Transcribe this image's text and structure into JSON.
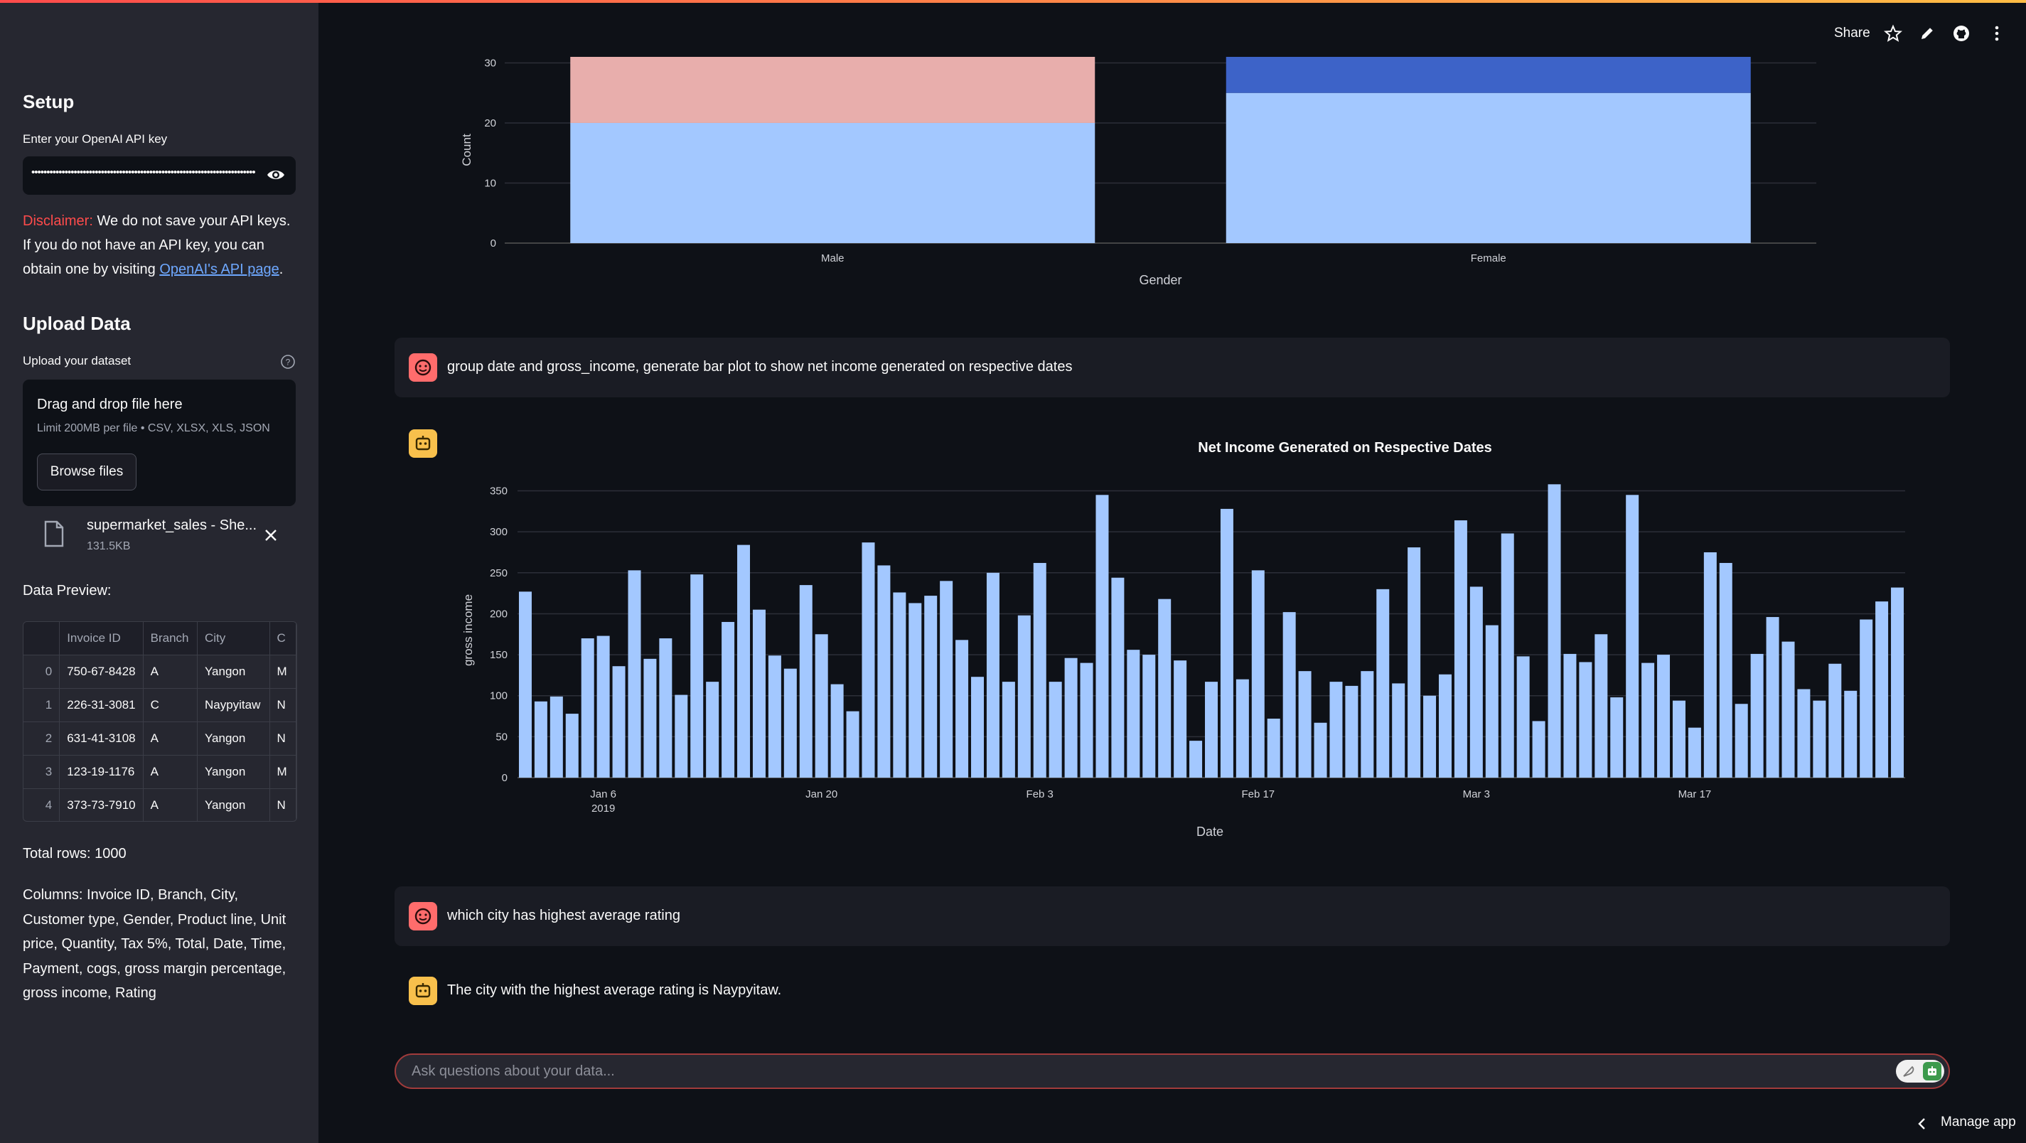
{
  "sidebar": {
    "setup_title": "Setup",
    "api_label": "Enter your OpenAI API key",
    "api_value": "••••••••••••••••••••••••••••••••••••••••••••••••••••••••••••••••••••••••••",
    "disclaimer_prefix": "Disclaimer:",
    "disclaimer_text": " We do not save your API keys. If you do not have an API key, you can obtain one by visiting ",
    "disclaimer_link": "OpenAI's API page",
    "disclaimer_end": ".",
    "upload_title": "Upload Data",
    "upload_label": "Upload your dataset",
    "dropzone_title": "Drag and drop file here",
    "dropzone_limit": "Limit 200MB per file • CSV, XLSX, XLS, JSON",
    "browse_label": "Browse files",
    "file_name": "supermarket_sales - She...",
    "file_size": "131.5KB",
    "preview_label": "Data Preview:",
    "table": {
      "headers": [
        "",
        "Invoice ID",
        "Branch",
        "City",
        "C"
      ],
      "rows": [
        [
          "0",
          "750-67-8428",
          "A",
          "Yangon",
          "M"
        ],
        [
          "1",
          "226-31-3081",
          "C",
          "Naypyitaw",
          "N"
        ],
        [
          "2",
          "631-41-3108",
          "A",
          "Yangon",
          "N"
        ],
        [
          "3",
          "123-19-1176",
          "A",
          "Yangon",
          "M"
        ],
        [
          "4",
          "373-73-7910",
          "A",
          "Yangon",
          "N"
        ]
      ]
    },
    "total_rows": "Total rows: 1000",
    "columns_text": "Columns: Invoice ID, Branch, City, Customer type, Gender, Product line, Unit price, Quantity, Tax 5%, Total, Date, Time, Payment, cogs, gross margin percentage, gross income, Rating"
  },
  "toolbar": {
    "share_label": "Share",
    "icons": [
      "star-icon",
      "pencil-icon",
      "github-icon",
      "more-vertical-icon"
    ]
  },
  "chat": {
    "msg1": "group date and gross_income, generate bar plot to show net income generated on respective dates",
    "msg2": "which city has highest average rating",
    "msg3": "The city with the highest average rating is Naypyitaw.",
    "input_placeholder": "Ask questions about your data...",
    "manage_app": "Manage app"
  },
  "chart_data": [
    {
      "type": "bar",
      "stacked": true,
      "xlabel": "Gender",
      "ylabel": "Count",
      "categories": [
        "Male",
        "Female"
      ],
      "ylim": [
        0,
        31
      ],
      "yticks": [
        0,
        10,
        20,
        30
      ],
      "series": [
        {
          "values": [
            20,
            25
          ],
          "colors": [
            "#a3c8ff",
            "#a3c8ff"
          ]
        },
        {
          "values": [
            11,
            6
          ],
          "colors": [
            "#e8aeac",
            "#3d63c8"
          ]
        }
      ],
      "colors": {
        "base": "#a3c8ff",
        "male_top": "#e8aeac",
        "female_top": "#3d63c8"
      }
    },
    {
      "type": "bar",
      "title": "Net Income Generated on Respective Dates",
      "xlabel": "Date",
      "ylabel": "gross income",
      "ylim": [
        0,
        360
      ],
      "yticks": [
        0,
        50,
        100,
        150,
        200,
        250,
        300,
        350
      ],
      "xticks": [
        {
          "label": "Jan 6",
          "sublabel": "2019",
          "date": "2019-01-06"
        },
        {
          "label": "Jan 20",
          "sublabel": "",
          "date": "2019-01-20"
        },
        {
          "label": "Feb 3",
          "sublabel": "",
          "date": "2019-02-03"
        },
        {
          "label": "Feb 17",
          "sublabel": "",
          "date": "2019-02-17"
        },
        {
          "label": "Mar 3",
          "sublabel": "",
          "date": "2019-03-03"
        },
        {
          "label": "Mar 17",
          "sublabel": "",
          "date": "2019-03-17"
        }
      ],
      "dates": [
        "2019-01-01",
        "2019-01-02",
        "2019-01-03",
        "2019-01-04",
        "2019-01-05",
        "2019-01-06",
        "2019-01-07",
        "2019-01-08",
        "2019-01-09",
        "2019-01-10",
        "2019-01-11",
        "2019-01-12",
        "2019-01-13",
        "2019-01-14",
        "2019-01-15",
        "2019-01-16",
        "2019-01-17",
        "2019-01-18",
        "2019-01-19",
        "2019-01-20",
        "2019-01-21",
        "2019-01-22",
        "2019-01-23",
        "2019-01-24",
        "2019-01-25",
        "2019-01-26",
        "2019-01-27",
        "2019-01-28",
        "2019-01-29",
        "2019-01-30",
        "2019-01-31",
        "2019-02-01",
        "2019-02-02",
        "2019-02-03",
        "2019-02-04",
        "2019-02-05",
        "2019-02-06",
        "2019-02-07",
        "2019-02-08",
        "2019-02-09",
        "2019-02-10",
        "2019-02-11",
        "2019-02-12",
        "2019-02-13",
        "2019-02-14",
        "2019-02-15",
        "2019-02-16",
        "2019-02-17",
        "2019-02-18",
        "2019-02-19",
        "2019-02-20",
        "2019-02-21",
        "2019-02-22",
        "2019-02-23",
        "2019-02-24",
        "2019-02-25",
        "2019-02-26",
        "2019-02-27",
        "2019-02-28",
        "2019-03-01",
        "2019-03-02",
        "2019-03-03",
        "2019-03-04",
        "2019-03-05",
        "2019-03-06",
        "2019-03-07",
        "2019-03-08",
        "2019-03-09",
        "2019-03-10",
        "2019-03-11",
        "2019-03-12",
        "2019-03-13",
        "2019-03-14",
        "2019-03-15",
        "2019-03-16",
        "2019-03-17",
        "2019-03-18",
        "2019-03-19",
        "2019-03-20",
        "2019-03-21",
        "2019-03-22",
        "2019-03-23",
        "2019-03-24",
        "2019-03-25",
        "2019-03-26",
        "2019-03-27",
        "2019-03-28",
        "2019-03-29",
        "2019-03-30"
      ],
      "values": [
        227,
        93,
        99,
        78,
        170,
        173,
        136,
        253,
        145,
        170,
        101,
        248,
        117,
        190,
        284,
        205,
        149,
        133,
        235,
        175,
        114,
        81,
        287,
        259,
        226,
        213,
        222,
        240,
        168,
        123,
        250,
        117,
        198,
        262,
        117,
        146,
        140,
        345,
        244,
        156,
        150,
        218,
        143,
        45,
        117,
        328,
        120,
        253,
        72,
        202,
        130,
        67,
        117,
        112,
        130,
        230,
        115,
        281,
        100,
        126,
        314,
        233,
        186,
        298,
        148,
        69,
        358,
        151,
        141,
        175,
        98,
        345,
        140,
        150,
        94,
        61,
        275,
        262,
        90,
        151,
        196,
        166,
        108,
        94,
        139,
        106,
        193,
        215,
        232
      ],
      "bar_color": "#a3c8ff"
    }
  ]
}
